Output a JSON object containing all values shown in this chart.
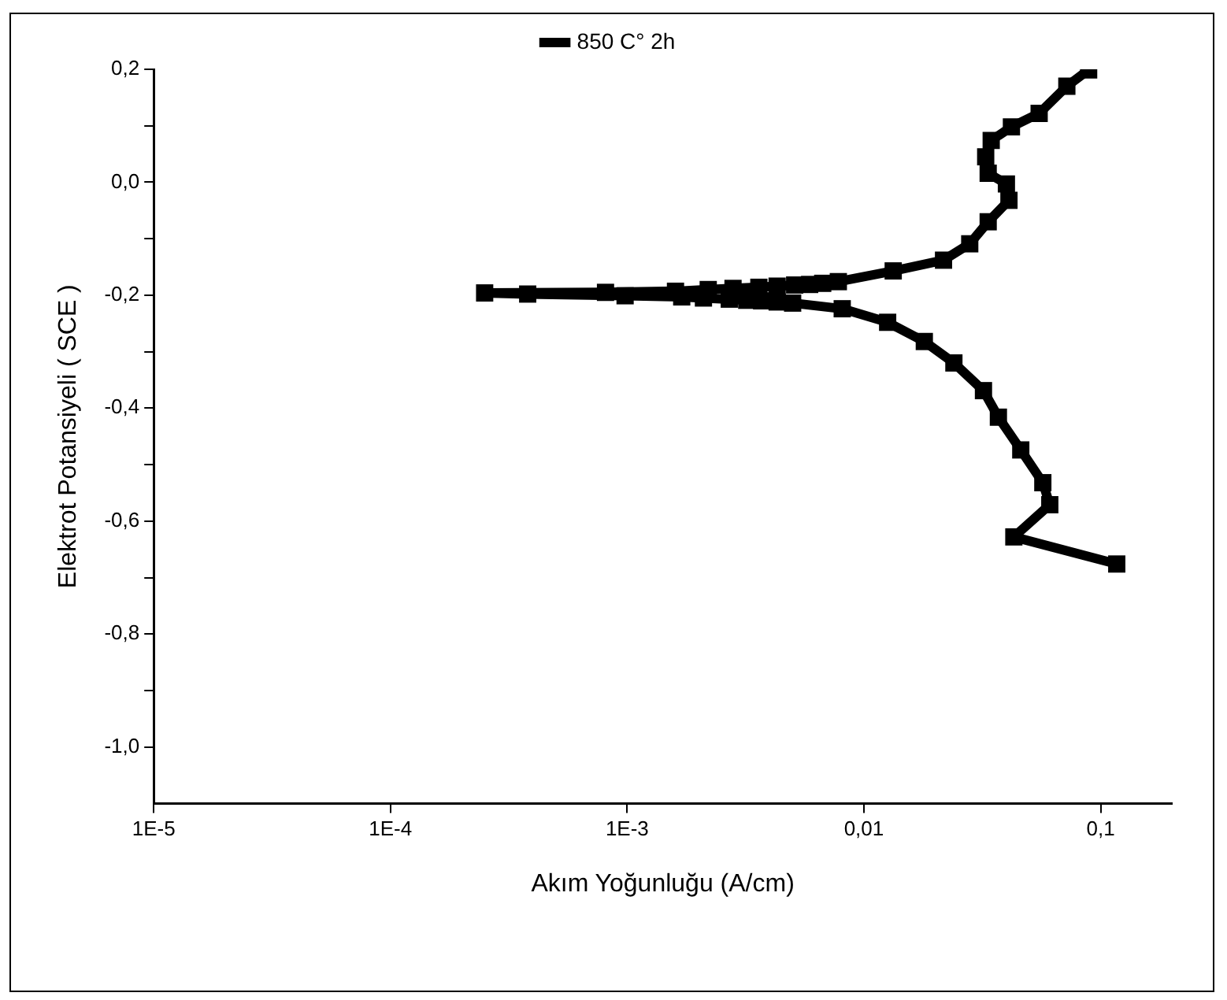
{
  "chart_data": {
    "type": "line",
    "xlabel": "Akım Yoğunluğu (A/cm)",
    "ylabel": "Elektrot Potansiyeli ( SCE )",
    "log": "x",
    "legend": "top",
    "marker": "square",
    "line_style": "solid",
    "xlim": [
      1e-05,
      0.2
    ],
    "xticks": [
      {
        "value": 1e-05,
        "label": "1E-5"
      },
      {
        "value": 0.0001,
        "label": "1E-4"
      },
      {
        "value": 0.001,
        "label": "1E-3"
      },
      {
        "value": 0.01,
        "label": "0,01"
      },
      {
        "value": 0.1,
        "label": "0,1"
      }
    ],
    "ylim": [
      -1.1,
      0.2
    ],
    "yticks": [
      {
        "value": -1.0,
        "label": "-1,0"
      },
      {
        "value": -0.9,
        "label": null
      },
      {
        "value": -0.8,
        "label": "-0,8"
      },
      {
        "value": -0.7,
        "label": null
      },
      {
        "value": -0.6,
        "label": "-0,6"
      },
      {
        "value": -0.5,
        "label": null
      },
      {
        "value": -0.4,
        "label": "-0,4"
      },
      {
        "value": -0.3,
        "label": null
      },
      {
        "value": -0.2,
        "label": "-0,2"
      },
      {
        "value": -0.1,
        "label": null
      },
      {
        "value": 0.0,
        "label": "0,0"
      },
      {
        "value": 0.1,
        "label": null
      },
      {
        "value": 0.2,
        "label": "0,2"
      }
    ],
    "series": [
      {
        "name": "850 C° 2h",
        "color": "#000000",
        "x": [
          0.117,
          0.043,
          0.061,
          0.057,
          0.046,
          0.037,
          0.032,
          0.024,
          0.018,
          0.0126,
          0.0081,
          0.005,
          0.0043,
          0.0037,
          0.0032,
          0.0027,
          0.0021,
          0.0017,
          0.00098,
          0.00038,
          0.00025,
          0.00081,
          0.0016,
          0.0022,
          0.0028,
          0.0036,
          0.0043,
          0.0051,
          0.0059,
          0.0067,
          0.0078,
          0.0133,
          0.0217,
          0.028,
          0.0335,
          0.041,
          0.04,
          0.0335,
          0.0327,
          0.0345,
          0.042,
          0.055,
          0.072,
          0.089
        ],
        "values": [
          -0.676,
          -0.628,
          -0.571,
          -0.532,
          -0.474,
          -0.416,
          -0.369,
          -0.32,
          -0.282,
          -0.248,
          -0.224,
          -0.214,
          -0.212,
          -0.21,
          -0.209,
          -0.207,
          -0.205,
          -0.203,
          -0.201,
          -0.198,
          -0.196,
          -0.195,
          -0.193,
          -0.19,
          -0.188,
          -0.186,
          -0.184,
          -0.182,
          -0.181,
          -0.179,
          -0.176,
          -0.157,
          -0.138,
          -0.109,
          -0.07,
          -0.032,
          -0.003,
          0.016,
          0.045,
          0.074,
          0.098,
          0.122,
          0.17,
          0.199
        ]
      }
    ]
  }
}
